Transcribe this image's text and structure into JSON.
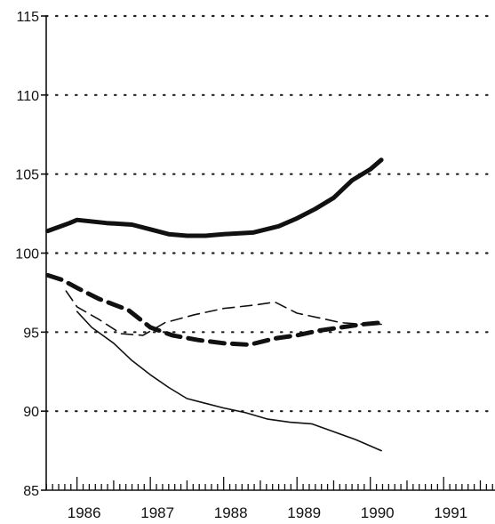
{
  "chart_data": {
    "type": "line",
    "title": "",
    "xlabel": "",
    "ylabel": "",
    "xlim": [
      1985.58,
      1991.7
    ],
    "ylim": [
      85,
      115
    ],
    "x_ticks": [
      1986,
      1987,
      1988,
      1989,
      1990,
      1991
    ],
    "x_tick_labels": [
      "1986",
      "1987",
      "1988",
      "1989",
      "1990",
      "1991"
    ],
    "y_ticks": [
      85,
      90,
      95,
      100,
      105,
      110,
      115
    ],
    "y_tick_labels": [
      "85",
      "90",
      "95",
      "100",
      "105",
      "110",
      "115"
    ],
    "grid": "horizontal-dotted",
    "legend": "none",
    "series": [
      {
        "style": "thick-solid",
        "x": [
          1985.6,
          1985.9,
          1986.0,
          1986.4,
          1986.75,
          1987.0,
          1987.25,
          1987.5,
          1987.75,
          1988.0,
          1988.4,
          1988.75,
          1989.0,
          1989.25,
          1989.5,
          1989.75,
          1990.0,
          1990.15
        ],
        "y": [
          101.4,
          101.9,
          102.1,
          101.9,
          101.8,
          101.5,
          101.2,
          101.1,
          101.1,
          101.2,
          101.3,
          101.7,
          102.2,
          102.8,
          103.5,
          104.6,
          105.3,
          105.9
        ]
      },
      {
        "style": "thick-dashed",
        "x": [
          1985.6,
          1985.8,
          1986.0,
          1986.3,
          1986.7,
          1987.0,
          1987.3,
          1987.65,
          1988.0,
          1988.35,
          1988.7,
          1989.0,
          1989.3,
          1989.6,
          1989.9,
          1990.15
        ],
        "y": [
          98.6,
          98.3,
          97.8,
          97.1,
          96.4,
          95.3,
          94.8,
          94.5,
          94.3,
          94.2,
          94.6,
          94.8,
          95.1,
          95.3,
          95.5,
          95.6
        ]
      },
      {
        "style": "thin-dashed",
        "x": [
          1985.85,
          1986.0,
          1986.3,
          1986.6,
          1986.9,
          1987.2,
          1987.6,
          1988.0,
          1988.4,
          1988.7,
          1989.0,
          1989.3,
          1989.6,
          1989.9,
          1990.15
        ],
        "y": [
          97.6,
          96.6,
          95.8,
          94.9,
          94.8,
          95.6,
          96.1,
          96.5,
          96.7,
          96.9,
          96.2,
          95.9,
          95.6,
          95.5,
          95.5
        ]
      },
      {
        "style": "thin-solid",
        "x": [
          1986.0,
          1986.2,
          1986.5,
          1986.75,
          1987.0,
          1987.25,
          1987.5,
          1987.75,
          1988.0,
          1988.3,
          1988.6,
          1988.9,
          1989.2,
          1989.5,
          1989.8,
          1990.15
        ],
        "y": [
          96.3,
          95.3,
          94.3,
          93.2,
          92.3,
          91.5,
          90.8,
          90.5,
          90.2,
          89.9,
          89.5,
          89.3,
          89.2,
          88.7,
          88.2,
          87.5
        ]
      }
    ]
  }
}
